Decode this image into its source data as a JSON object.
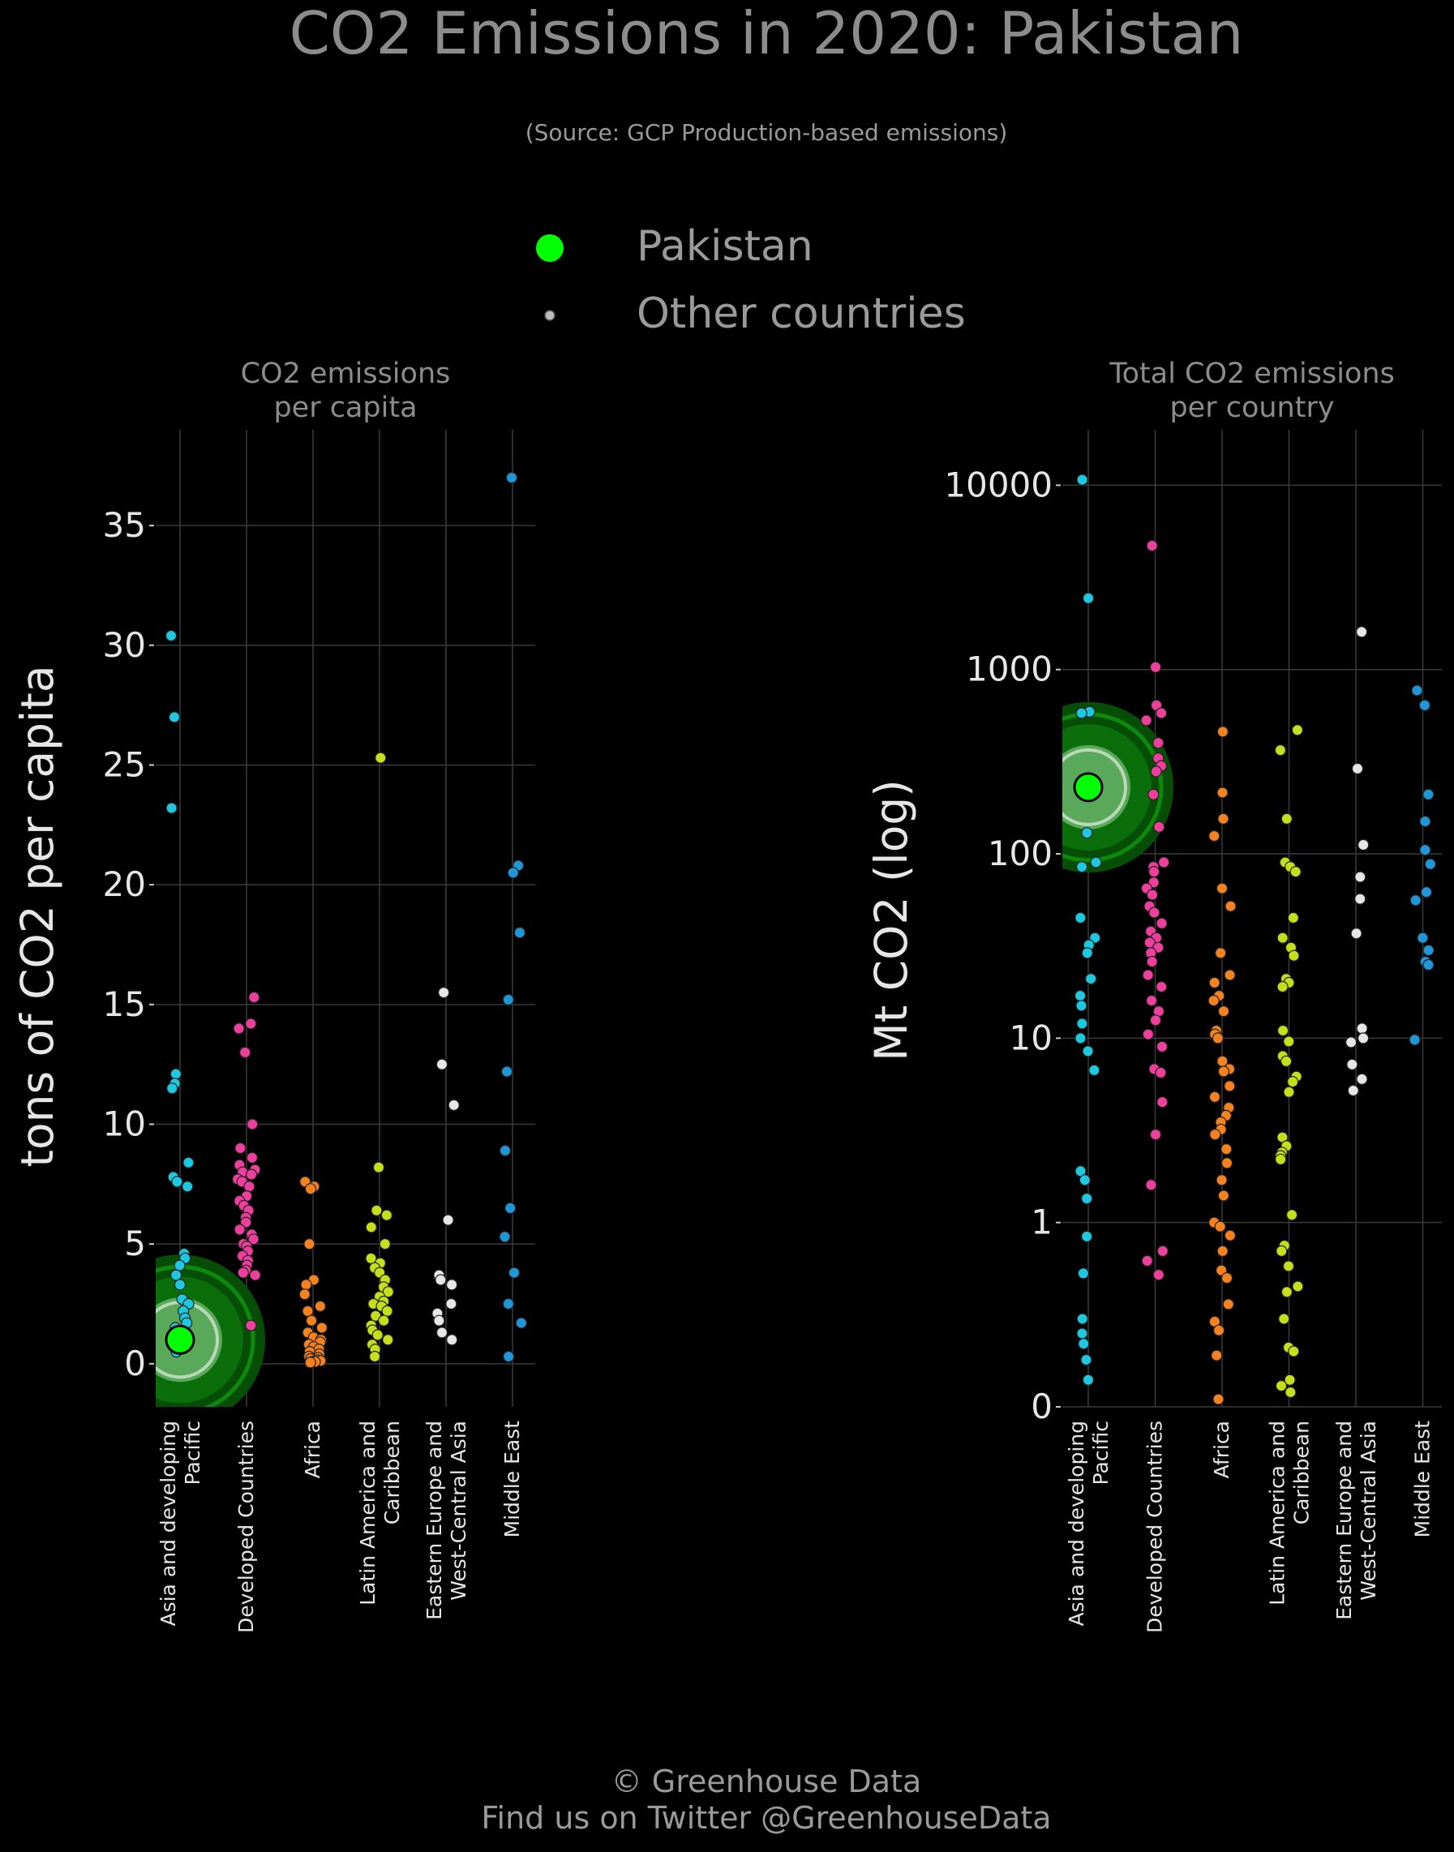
{
  "header": {
    "title": "CO2 Emissions in 2020: Pakistan",
    "subtitle": "(Source: GCP Production-based emissions)"
  },
  "legend": {
    "items": [
      {
        "label": "Pakistan",
        "color": "#00ff00"
      },
      {
        "label": "Other countries",
        "color": "#bbbbbb"
      }
    ],
    "placement": "top-center"
  },
  "footer": {
    "line1": "© Greenhouse Data",
    "line2": "Find us on Twitter @GreenhouseData"
  },
  "colors": {
    "Asia and developing Pacific": "#1ec8e0",
    "Developed Countries": "#ee3f9c",
    "Africa": "#f5821f",
    "Latin America and Caribbean": "#c5e01a",
    "Eastern Europe and West-Central Asia": "#e6e6e6",
    "Middle East": "#1f96d8",
    "highlight": "#00ff00",
    "highlight_halo": "#0a6e0a"
  },
  "chart_data": [
    {
      "type": "scatter",
      "title": "CO2 emissions\nper capita",
      "ylabel": "tons of CO2 per capita",
      "ylim": [
        -1.8,
        39
      ],
      "yticks": [
        0,
        5,
        10,
        15,
        20,
        25,
        30,
        35
      ],
      "grid": true,
      "categories": [
        "Asia and developing\nPacific",
        "Developed Countries",
        "Africa",
        "Latin America and\nCaribbean",
        "Eastern Europe and\nWest-Central Asia",
        "Middle East"
      ],
      "highlight": {
        "name": "Pakistan",
        "category": 0,
        "value": 1.0
      },
      "series": [
        {
          "values": [
            30.4,
            27.0,
            23.2,
            12.1,
            11.7,
            11.5,
            8.4,
            7.8,
            7.6,
            7.4,
            4.6,
            4.4,
            4.1,
            3.7,
            3.3,
            2.7,
            2.5,
            2.2,
            1.9,
            1.7,
            1.5,
            1.3,
            1.1,
            0.9,
            0.7,
            0.5
          ]
        },
        {
          "values": [
            15.3,
            14.2,
            14.0,
            13.0,
            10.0,
            9.0,
            8.6,
            8.3,
            8.1,
            8.0,
            7.9,
            7.7,
            7.6,
            7.4,
            7.0,
            6.8,
            6.6,
            6.4,
            6.1,
            5.9,
            5.6,
            5.4,
            5.2,
            5.0,
            4.9,
            4.7,
            4.5,
            4.3,
            4.1,
            3.9,
            3.8,
            3.7,
            1.6
          ]
        },
        {
          "values": [
            7.6,
            7.4,
            7.3,
            5.0,
            3.5,
            3.3,
            2.9,
            2.4,
            2.2,
            1.8,
            1.5,
            1.3,
            1.1,
            1.0,
            0.9,
            0.8,
            0.7,
            0.6,
            0.5,
            0.4,
            0.3,
            0.25,
            0.2,
            0.15,
            0.12,
            0.1,
            0.08,
            0.05
          ]
        },
        {
          "values": [
            25.3,
            8.2,
            6.4,
            6.2,
            5.7,
            5.0,
            4.4,
            4.2,
            4.0,
            3.8,
            3.5,
            3.2,
            3.0,
            2.8,
            2.6,
            2.5,
            2.4,
            2.2,
            2.0,
            1.8,
            1.6,
            1.4,
            1.2,
            1.0,
            0.8,
            0.6,
            0.3
          ]
        },
        {
          "values": [
            15.5,
            12.5,
            10.8,
            6.0,
            3.7,
            3.5,
            3.3,
            2.5,
            2.1,
            1.8,
            1.3,
            1.0
          ]
        },
        {
          "values": [
            37.0,
            20.8,
            20.5,
            18.0,
            15.2,
            12.2,
            8.9,
            6.5,
            5.3,
            3.8,
            2.5,
            1.7,
            0.3
          ]
        }
      ]
    },
    {
      "type": "scatter",
      "title": "Total CO2 emissions\nper country",
      "ylabel": "Mt CO2 (log)",
      "yscale": "log",
      "ylim": [
        0.1,
        20000
      ],
      "ytick_values": [
        0.1,
        1,
        10,
        100,
        1000,
        10000
      ],
      "ytick_labels": [
        "0",
        "1",
        "10",
        "100",
        "1000",
        "10000"
      ],
      "grid": true,
      "categories": [
        "Asia and developing\nPacific",
        "Developed Countries",
        "Africa",
        "Latin America and\nCaribbean",
        "Eastern Europe and\nWest-Central Asia",
        "Middle East"
      ],
      "highlight": {
        "name": "Pakistan",
        "category": 0,
        "value": 230
      },
      "series": [
        {
          "values": [
            10700,
            2440,
            590,
            580,
            130,
            90,
            85,
            45,
            35,
            32,
            29,
            21,
            17,
            15,
            12,
            10,
            8.5,
            6.7,
            1.9,
            1.7,
            1.35,
            0.84,
            0.53,
            0.3,
            0.25,
            0.22,
            0.18,
            0.14
          ]
        },
        {
          "values": [
            4700,
            1030,
            640,
            580,
            530,
            400,
            330,
            300,
            280,
            210,
            140,
            90,
            85,
            80,
            70,
            65,
            60,
            52,
            48,
            42,
            38,
            35,
            33,
            31,
            29,
            26,
            22,
            19,
            16,
            14,
            12.5,
            10.5,
            9.0,
            6.8,
            6.5,
            4.5,
            3.0,
            1.6,
            0.7,
            0.62,
            0.52
          ]
        },
        {
          "values": [
            460,
            215,
            155,
            125,
            65,
            52,
            29,
            22,
            20,
            17,
            16,
            14,
            11,
            10.5,
            10,
            7.5,
            6.8,
            6.6,
            5.5,
            4.8,
            4.2,
            3.8,
            3.5,
            3.2,
            3.0,
            2.5,
            2.1,
            1.7,
            1.4,
            1.0,
            0.95,
            0.85,
            0.7,
            0.55,
            0.5,
            0.36,
            0.29,
            0.26,
            0.19,
            0.11
          ]
        },
        {
          "values": [
            470,
            365,
            155,
            90,
            85,
            80,
            45,
            35,
            31,
            28,
            21,
            20,
            19,
            11,
            9.6,
            8.0,
            7.5,
            6.2,
            5.8,
            5.1,
            2.9,
            2.6,
            2.4,
            2.3,
            2.2,
            1.1,
            0.75,
            0.7,
            0.58,
            0.45,
            0.42,
            0.3,
            0.21,
            0.2,
            0.14,
            0.13,
            0.12
          ]
        },
        {
          "values": [
            1600,
            290,
            112,
            75,
            57,
            37,
            11.3,
            10,
            9.5,
            7.2,
            6.0,
            5.2
          ]
        },
        {
          "values": [
            770,
            640,
            210,
            150,
            105,
            88,
            62,
            56,
            35,
            30,
            26,
            25,
            9.8
          ]
        }
      ]
    }
  ]
}
